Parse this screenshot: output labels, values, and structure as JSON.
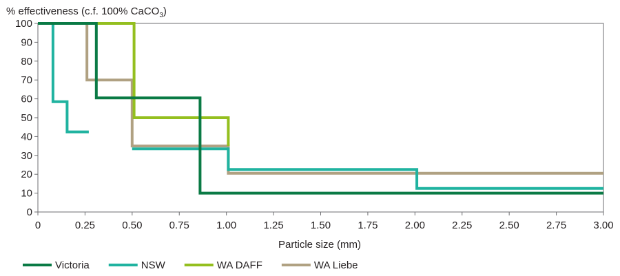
{
  "chart_data": {
    "type": "line",
    "step": true,
    "ylabel_main": "% effectiveness (c.f. 100% CaCO",
    "ylabel_sub": "3",
    "ylabel_end": ")",
    "xlabel": "Particle size (mm)",
    "xlim": [
      0,
      3
    ],
    "ylim": [
      0,
      100
    ],
    "xticks": [
      "0",
      "0.25",
      "0.50",
      "0.75",
      "1.00",
      "1.25",
      "1.50",
      "1.75",
      "2.00",
      "2.25",
      "2.50",
      "2.75",
      "3.00"
    ],
    "xtick_values": [
      0,
      0.25,
      0.5,
      0.75,
      1.0,
      1.25,
      1.5,
      1.75,
      2.0,
      2.25,
      2.5,
      2.75,
      3.0
    ],
    "yticks": [
      "0",
      "10",
      "20",
      "30",
      "40",
      "50",
      "60",
      "70",
      "80",
      "90",
      "100"
    ],
    "ytick_values": [
      0,
      10,
      20,
      30,
      40,
      50,
      60,
      70,
      80,
      90,
      100
    ],
    "grid": false,
    "legend_position": "bottom-left",
    "series": [
      {
        "name": "Victoria",
        "color": "#0a7a45",
        "points": [
          [
            0,
            100
          ],
          [
            0.31,
            100
          ],
          [
            0.31,
            60.5
          ],
          [
            0.86,
            60.5
          ],
          [
            0.86,
            10
          ],
          [
            3.0,
            10
          ]
        ]
      },
      {
        "name": "NSW",
        "color": "#20b3a0",
        "segments": [
          [
            [
              0,
              100
            ],
            [
              0.08,
              100
            ],
            [
              0.08,
              58.5
            ],
            [
              0.155,
              58.5
            ],
            [
              0.155,
              42.5
            ],
            [
              0.27,
              42.5
            ]
          ],
          [
            [
              0.5,
              33.5
            ],
            [
              1.01,
              33.5
            ],
            [
              1.01,
              22.5
            ],
            [
              2.01,
              22.5
            ],
            [
              2.01,
              12.5
            ],
            [
              3.0,
              12.5
            ]
          ]
        ]
      },
      {
        "name": "WA DAFF",
        "color": "#94bf1f",
        "points": [
          [
            0,
            100
          ],
          [
            0.51,
            100
          ],
          [
            0.51,
            50
          ],
          [
            1.01,
            50
          ],
          [
            1.01,
            35
          ],
          [
            1.01,
            35
          ]
        ]
      },
      {
        "name": "WA Liebe",
        "color": "#b0a182",
        "points": [
          [
            0.26,
            100
          ],
          [
            0.26,
            70
          ],
          [
            0.5,
            70
          ],
          [
            0.5,
            35
          ],
          [
            1.01,
            35
          ],
          [
            1.01,
            20.5
          ],
          [
            3.0,
            20.5
          ]
        ]
      }
    ]
  }
}
